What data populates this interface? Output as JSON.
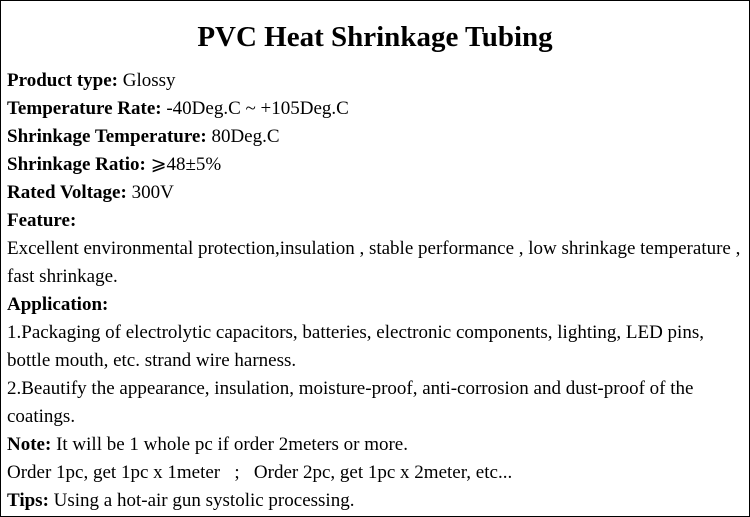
{
  "title": "PVC Heat Shrinkage Tubing",
  "specs": [
    {
      "label": "Product type:",
      "value": "Glossy"
    },
    {
      "label": "Temperature Rate:",
      "value": "-40Deg.C ~ +105Deg.C"
    },
    {
      "label": "Shrinkage Temperature:",
      "value": "80Deg.C"
    },
    {
      "label": "Shrinkage Ratio:",
      "value": "⩾48±5%"
    },
    {
      "label": "Rated Voltage:",
      "value": "300V"
    }
  ],
  "feature": {
    "label": "Feature:",
    "text": "Excellent environmental protection,insulation , stable performance , low shrinkage temperature , fast shrinkage."
  },
  "application": {
    "label": "Application:",
    "items": [
      "1.Packaging of electrolytic capacitors, batteries, electronic components, lighting, LED pins, bottle mouth, etc. strand wire harness.",
      "2.Beautify the appearance, insulation, moisture-proof, anti-corrosion and dust-proof of the coatings."
    ]
  },
  "note": {
    "label": "Note:",
    "value": "It will be 1 whole pc if order 2meters or more."
  },
  "order_line": "Order 1pc, get 1pc x 1meter   ;   Order 2pc, get 1pc x 2meter, etc...",
  "tips": {
    "label": "Tips:",
    "value": "Using a hot-air gun systolic processing."
  }
}
